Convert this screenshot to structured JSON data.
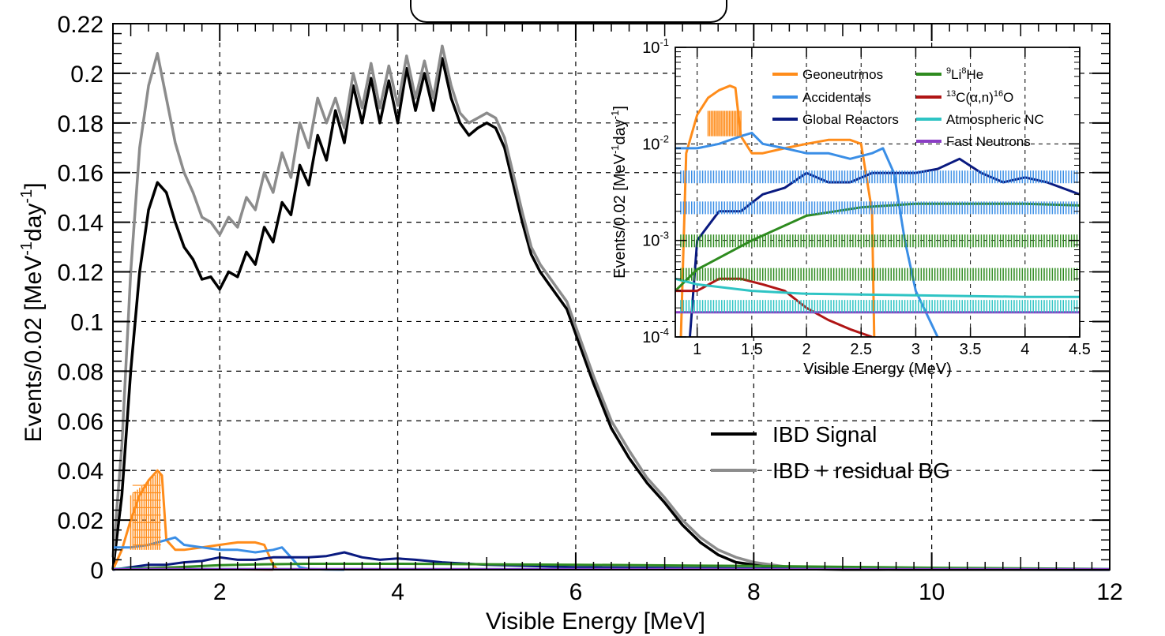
{
  "chart_data": [
    {
      "type": "line",
      "xlabel": "Visible Energy [MeV]",
      "ylabel": "Events/0.02 [MeV",
      "ylabel_sup1": "-1",
      "ylabel_mid": "day",
      "ylabel_sup2": "-1",
      "ylabel_end": "]",
      "xlim": [
        0.8,
        12
      ],
      "ylim": [
        0,
        0.22
      ],
      "xticks": [
        "2",
        "4",
        "6",
        "8",
        "10",
        "12"
      ],
      "yticks": [
        "0",
        "0.02",
        "0.04",
        "0.06",
        "0.08",
        "0.1",
        "0.12",
        "0.14",
        "0.16",
        "0.18",
        "0.2",
        "0.22"
      ],
      "grid": true,
      "legend": {
        "position": "middle-right",
        "entries": [
          "IBD Signal",
          "IBD + residual BG"
        ]
      },
      "series": [
        {
          "name": "IBD Signal",
          "color": "#000000",
          "x": [
            0.8,
            0.9,
            1.0,
            1.1,
            1.2,
            1.3,
            1.4,
            1.5,
            1.6,
            1.7,
            1.8,
            1.9,
            2.0,
            2.1,
            2.2,
            2.3,
            2.4,
            2.5,
            2.6,
            2.7,
            2.8,
            2.9,
            3.0,
            3.1,
            3.2,
            3.3,
            3.4,
            3.5,
            3.6,
            3.7,
            3.8,
            3.9,
            4.0,
            4.1,
            4.2,
            4.3,
            4.4,
            4.5,
            4.6,
            4.7,
            4.8,
            4.9,
            5.0,
            5.1,
            5.2,
            5.3,
            5.4,
            5.5,
            5.6,
            5.7,
            5.8,
            5.9,
            6.0,
            6.2,
            6.4,
            6.6,
            6.8,
            7.0,
            7.2,
            7.4,
            7.6,
            7.8,
            8.0,
            8.2,
            8.4,
            8.6,
            8.8,
            9.0,
            9.5,
            10.0,
            11.0,
            12.0
          ],
          "y": [
            0.0,
            0.03,
            0.08,
            0.12,
            0.145,
            0.156,
            0.152,
            0.14,
            0.13,
            0.125,
            0.117,
            0.118,
            0.113,
            0.12,
            0.118,
            0.128,
            0.123,
            0.138,
            0.132,
            0.148,
            0.143,
            0.163,
            0.155,
            0.175,
            0.165,
            0.185,
            0.172,
            0.195,
            0.18,
            0.198,
            0.18,
            0.197,
            0.18,
            0.202,
            0.185,
            0.2,
            0.185,
            0.206,
            0.19,
            0.18,
            0.175,
            0.178,
            0.18,
            0.178,
            0.17,
            0.155,
            0.14,
            0.127,
            0.12,
            0.115,
            0.11,
            0.105,
            0.095,
            0.075,
            0.057,
            0.045,
            0.035,
            0.027,
            0.018,
            0.011,
            0.006,
            0.003,
            0.002,
            0.001,
            0.0005,
            0.0003,
            0.0002,
            0.0001,
            5e-05,
            0.0,
            0.0,
            0.0
          ]
        },
        {
          "name": "IBD + residual BG",
          "color": "#8c8c8c",
          "x": [
            0.8,
            0.9,
            1.0,
            1.1,
            1.2,
            1.3,
            1.4,
            1.5,
            1.6,
            1.7,
            1.8,
            1.9,
            2.0,
            2.1,
            2.2,
            2.3,
            2.4,
            2.5,
            2.6,
            2.7,
            2.8,
            2.9,
            3.0,
            3.1,
            3.2,
            3.3,
            3.4,
            3.5,
            3.6,
            3.7,
            3.8,
            3.9,
            4.0,
            4.1,
            4.2,
            4.3,
            4.4,
            4.5,
            4.6,
            4.7,
            4.8,
            4.9,
            5.0,
            5.1,
            5.2,
            5.3,
            5.4,
            5.5,
            5.6,
            5.7,
            5.8,
            5.9,
            6.0,
            6.2,
            6.4,
            6.6,
            6.8,
            7.0,
            7.2,
            7.4,
            7.6,
            7.8,
            8.0,
            8.2,
            8.4,
            8.6,
            8.8,
            9.0,
            9.5,
            10.0,
            11.0,
            12.0
          ],
          "y": [
            0.005,
            0.05,
            0.12,
            0.17,
            0.195,
            0.208,
            0.19,
            0.172,
            0.16,
            0.152,
            0.142,
            0.14,
            0.135,
            0.142,
            0.138,
            0.15,
            0.145,
            0.16,
            0.152,
            0.168,
            0.158,
            0.18,
            0.17,
            0.19,
            0.18,
            0.19,
            0.178,
            0.2,
            0.186,
            0.204,
            0.186,
            0.203,
            0.187,
            0.207,
            0.19,
            0.205,
            0.19,
            0.211,
            0.195,
            0.184,
            0.18,
            0.182,
            0.184,
            0.182,
            0.174,
            0.159,
            0.144,
            0.13,
            0.123,
            0.118,
            0.113,
            0.108,
            0.098,
            0.078,
            0.06,
            0.048,
            0.037,
            0.029,
            0.02,
            0.013,
            0.008,
            0.005,
            0.003,
            0.002,
            0.001,
            0.0008,
            0.0006,
            0.0004,
            0.0002,
            0.0001,
            0.0,
            0.0
          ]
        },
        {
          "name": "Geoneutrinos",
          "color": "#ff8c1a",
          "x": [
            0.8,
            0.9,
            1.0,
            1.1,
            1.2,
            1.3,
            1.35,
            1.4,
            1.5,
            1.6,
            1.8,
            2.0,
            2.2,
            2.4,
            2.5,
            2.6,
            2.65
          ],
          "y": [
            0.0,
            0.008,
            0.02,
            0.03,
            0.036,
            0.04,
            0.038,
            0.012,
            0.008,
            0.008,
            0.009,
            0.01,
            0.011,
            0.011,
            0.01,
            0.002,
            0.0
          ]
        },
        {
          "name": "Accidentals",
          "color": "#3a8ee6",
          "x": [
            0.8,
            1.0,
            1.2,
            1.4,
            1.5,
            1.6,
            1.8,
            2.0,
            2.2,
            2.4,
            2.6,
            2.7,
            2.8,
            2.9,
            3.0,
            3.2,
            3.4
          ],
          "y": [
            0.009,
            0.009,
            0.01,
            0.012,
            0.013,
            0.01,
            0.009,
            0.008,
            0.008,
            0.007,
            0.008,
            0.009,
            0.005,
            0.001,
            0.0003,
            0.0001,
            0.0
          ]
        },
        {
          "name": "Global Reactors",
          "color": "#0a1a80",
          "x": [
            0.8,
            1.0,
            1.2,
            1.4,
            1.6,
            1.8,
            2.0,
            2.2,
            2.4,
            2.6,
            2.8,
            3.0,
            3.2,
            3.4,
            3.6,
            3.8,
            4.0,
            4.2,
            4.5,
            5,
            6,
            8,
            10,
            12
          ],
          "y": [
            0.0,
            0.001,
            0.002,
            0.002,
            0.003,
            0.0035,
            0.005,
            0.004,
            0.004,
            0.005,
            0.005,
            0.005,
            0.0055,
            0.007,
            0.005,
            0.004,
            0.0045,
            0.004,
            0.003,
            0.002,
            0.001,
            0.0005,
            0.0002,
            0.0001
          ]
        },
        {
          "name": "⁹Li⁸He",
          "color": "#2e8b1f",
          "x": [
            0.8,
            1.0,
            1.5,
            2.0,
            2.5,
            3.0,
            3.5,
            4.0,
            4.5,
            6,
            8,
            10,
            12
          ],
          "y": [
            0.0003,
            0.0005,
            0.001,
            0.0018,
            0.0022,
            0.0024,
            0.0024,
            0.0024,
            0.0023,
            0.002,
            0.0015,
            0.0008,
            0.0003
          ]
        },
        {
          "name": "¹³C(α,n)¹⁶O",
          "color": "#b01515",
          "x": [
            0.8,
            1.0,
            1.2,
            1.4,
            1.6,
            1.8,
            2.0,
            2.2,
            2.4,
            2.6
          ],
          "y": [
            0.0003,
            0.0003,
            0.0004,
            0.0004,
            0.00035,
            0.0003,
            0.0002,
            0.00015,
            0.00012,
            0.0001
          ]
        },
        {
          "name": "Atmospheric NC",
          "color": "#2ec4c4",
          "x": [
            0.8,
            1.0,
            1.5,
            2.0,
            3.0,
            4.0,
            4.5,
            8,
            12
          ],
          "y": [
            0.0004,
            0.00035,
            0.0003,
            0.00028,
            0.00027,
            0.00026,
            0.00026,
            0.00024,
            0.00022
          ]
        },
        {
          "name": "Fast Neutrons",
          "color": "#8a3ec4",
          "x": [
            0.8,
            4.5,
            12
          ],
          "y": [
            0.00018,
            0.00018,
            0.00018
          ]
        }
      ]
    },
    {
      "type": "line",
      "scale": "log",
      "xlabel": "Visible Energy (MeV)",
      "ylabel": "Events/0.02 [MeV",
      "ylabel_sup1": "-1",
      "ylabel_mid": "day",
      "ylabel_sup2": "-1",
      "ylabel_end": "]",
      "xlim": [
        0.8,
        4.5
      ],
      "ylim": [
        0.0001,
        0.1
      ],
      "xticks": [
        "1",
        "1.5",
        "2",
        "2.5",
        "3",
        "3.5",
        "4",
        "4.5"
      ],
      "yticks": [
        {
          "base": "10",
          "exp": "-4",
          "value": 0.0001
        },
        {
          "base": "10",
          "exp": "-3",
          "value": 0.001
        },
        {
          "base": "10",
          "exp": "-2",
          "value": 0.01
        },
        {
          "base": "10",
          "exp": "-1",
          "value": 0.1
        }
      ],
      "grid": true,
      "legend": {
        "position": "top",
        "entries": [
          {
            "label": "Geoneutrinos",
            "color": "#ff8c1a"
          },
          {
            "label": "Accidentals",
            "color": "#3a8ee6"
          },
          {
            "label": "Global Reactors",
            "color": "#0a1a80"
          },
          {
            "sup_pre": "9",
            "base": "Li",
            "sup_mid": "8",
            "tail": "He",
            "color": "#2e8b1f"
          },
          {
            "sup_pre": "13",
            "base": "C(α,n)",
            "sup_mid": "16",
            "tail": "O",
            "color": "#b01515"
          },
          {
            "label": "Atmospheric NC",
            "color": "#2ec4c4"
          },
          {
            "label": "Fast Neutrons",
            "color": "#8a3ec4"
          }
        ]
      }
    }
  ]
}
